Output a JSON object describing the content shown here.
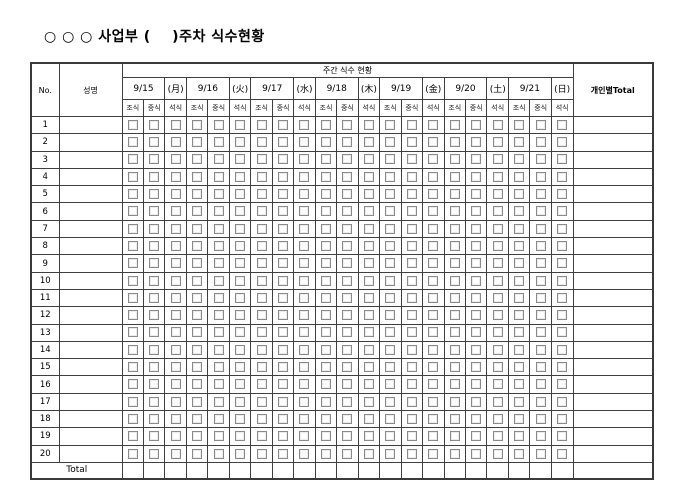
{
  "title": "○ ○ ○ 사업부 (    )주차 식수현황",
  "table": {
    "header": {
      "no": "No.",
      "name": "성명",
      "weekly_title": "주간 식수 현황",
      "personal_total": "개인별Total",
      "meals": [
        "조식",
        "중식",
        "석식"
      ],
      "days": [
        {
          "date": "9/15",
          "dow": "(月)"
        },
        {
          "date": "9/16",
          "dow": "(火)"
        },
        {
          "date": "9/17",
          "dow": "(水)"
        },
        {
          "date": "9/18",
          "dow": "(木)"
        },
        {
          "date": "9/19",
          "dow": "(金)"
        },
        {
          "date": "9/20",
          "dow": "(土)"
        },
        {
          "date": "9/21",
          "dow": "(日)"
        }
      ]
    },
    "row_numbers": [
      "1",
      "2",
      "3",
      "4",
      "5",
      "6",
      "7",
      "8",
      "9",
      "10",
      "11",
      "12",
      "13",
      "14",
      "15",
      "16",
      "17",
      "18",
      "19",
      "20"
    ],
    "rows_all_names_empty": true,
    "checkboxes_all_unchecked": true,
    "footer": {
      "total_label": "Total"
    }
  },
  "colors": {
    "background": "#ffffff",
    "border_dark": "#3f3f3f",
    "border_light": "#d9d9d9",
    "checkbox_border": "#8a8a8a",
    "text": "#000000"
  }
}
